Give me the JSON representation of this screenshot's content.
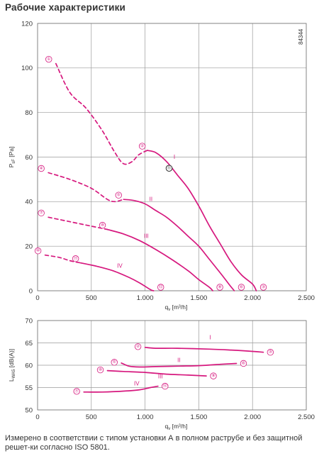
{
  "title": "Рабочие характеристики",
  "footnote": "Измерено в соответствии с типом установки А в полном раструбе и без защитной решет-ки согласно ISO 5801.",
  "colors": {
    "curve": "#d6187e",
    "grid": "#9a9a9a"
  },
  "chart_data": [
    {
      "type": "line",
      "title": "",
      "code": "84344",
      "xlabel": "q_v [m³/h]",
      "ylabel": "P_sF [Pa]",
      "xlim": [
        0,
        2500
      ],
      "ylim": [
        0,
        120
      ],
      "xticks": [
        "0",
        "500",
        "1.000",
        "1.500",
        "2.000",
        "2.500"
      ],
      "yticks": [
        "0",
        "20",
        "40",
        "60",
        "80",
        "100",
        "120"
      ],
      "grid": true,
      "series": [
        {
          "name": "I",
          "start_marker": "1",
          "mid_marker": "2",
          "end_marker": "3",
          "dashed_points": [
            [
              170,
              102
            ],
            [
              300,
              89
            ],
            [
              450,
              82
            ],
            [
              600,
              72
            ],
            [
              720,
              62
            ],
            [
              800,
              57
            ],
            [
              880,
              58
            ],
            [
              940,
              61
            ],
            [
              1020,
              63
            ]
          ],
          "solid_points": [
            [
              1020,
              63
            ],
            [
              1100,
              62
            ],
            [
              1200,
              58
            ],
            [
              1300,
              52
            ],
            [
              1400,
              46
            ],
            [
              1500,
              38
            ],
            [
              1600,
              29
            ],
            [
              1700,
              21
            ],
            [
              1800,
              13
            ],
            [
              1900,
              7
            ],
            [
              2000,
              3
            ],
            [
              2035,
              0
            ]
          ],
          "operating_point": {
            "label": "11",
            "x": 1250,
            "y": 55
          }
        },
        {
          "name": "II",
          "start_marker": "4",
          "mid_marker": "5",
          "end_marker": "6",
          "dashed_points": [
            [
              100,
              53
            ],
            [
              300,
              50
            ],
            [
              500,
              46
            ],
            [
              650,
              41
            ],
            [
              720,
              40
            ],
            [
              800,
              41
            ]
          ],
          "solid_points": [
            [
              800,
              41
            ],
            [
              900,
              40.5
            ],
            [
              1000,
              39
            ],
            [
              1100,
              36
            ],
            [
              1200,
              33
            ],
            [
              1300,
              29
            ],
            [
              1400,
              24.5
            ],
            [
              1500,
              20
            ],
            [
              1600,
              14
            ],
            [
              1700,
              8
            ],
            [
              1780,
              3
            ],
            [
              1830,
              0
            ]
          ],
          "operating_point": null
        },
        {
          "name": "III",
          "start_marker": "7",
          "mid_marker": "8",
          "end_marker": "9",
          "dashed_points": [
            [
              100,
              33
            ],
            [
              300,
              31
            ],
            [
              500,
              29
            ],
            [
              650,
              27.5
            ]
          ],
          "solid_points": [
            [
              650,
              27.5
            ],
            [
              800,
              25.5
            ],
            [
              950,
              22.5
            ],
            [
              1100,
              18.5
            ],
            [
              1250,
              14
            ],
            [
              1400,
              9
            ],
            [
              1500,
              5
            ],
            [
              1600,
              1.5
            ],
            [
              1630,
              0
            ]
          ],
          "operating_point": null
        },
        {
          "name": "IV",
          "start_marker": "10",
          "mid_marker": "11",
          "end_marker": "12",
          "dashed_points": [
            [
              70,
              16
            ],
            [
              200,
              15
            ],
            [
              300,
              13.5
            ],
            [
              400,
              12.5
            ]
          ],
          "solid_points": [
            [
              400,
              12.5
            ],
            [
              550,
              11
            ],
            [
              700,
              9
            ],
            [
              850,
              6
            ],
            [
              950,
              3.5
            ],
            [
              1050,
              0.5
            ],
            [
              1080,
              0
            ]
          ],
          "operating_point": null
        }
      ]
    },
    {
      "type": "line",
      "title": "",
      "xlabel": "q_v [m³/h]",
      "ylabel": "L_WA5 [dB(A)]",
      "xlim": [
        0,
        2500
      ],
      "ylim": [
        50,
        70
      ],
      "xticks": [
        "0",
        "500",
        "1.000",
        "1.500",
        "2.000",
        "2.500"
      ],
      "yticks": [
        "50",
        "55",
        "60",
        "65",
        "70"
      ],
      "grid": true,
      "series": [
        {
          "name": "I",
          "start_marker": "2",
          "end_marker": "3",
          "points": [
            [
              1000,
              64
            ],
            [
              1100,
              63.8
            ],
            [
              1300,
              63.8
            ],
            [
              1600,
              63.6
            ],
            [
              1800,
              63.4
            ],
            [
              2000,
              63.1
            ],
            [
              2100,
              62.9
            ]
          ]
        },
        {
          "name": "II",
          "start_marker": "5",
          "end_marker": "6",
          "points": [
            [
              780,
              60.5
            ],
            [
              850,
              59.8
            ],
            [
              950,
              59.6
            ],
            [
              1100,
              59.7
            ],
            [
              1300,
              59.8
            ],
            [
              1500,
              59.9
            ],
            [
              1700,
              60.2
            ],
            [
              1850,
              60.4
            ]
          ]
        },
        {
          "name": "III",
          "start_marker": "8",
          "end_marker": "9",
          "points": [
            [
              650,
              58.8
            ],
            [
              800,
              58.6
            ],
            [
              1000,
              58.4
            ],
            [
              1200,
              58
            ],
            [
              1400,
              57.8
            ],
            [
              1570,
              57.6
            ]
          ]
        },
        {
          "name": "IV",
          "start_marker": "11",
          "end_marker": "12",
          "points": [
            [
              430,
              54
            ],
            [
              600,
              54
            ],
            [
              800,
              54.2
            ],
            [
              950,
              54.5
            ],
            [
              1050,
              55
            ],
            [
              1120,
              55.3
            ]
          ]
        }
      ]
    }
  ]
}
